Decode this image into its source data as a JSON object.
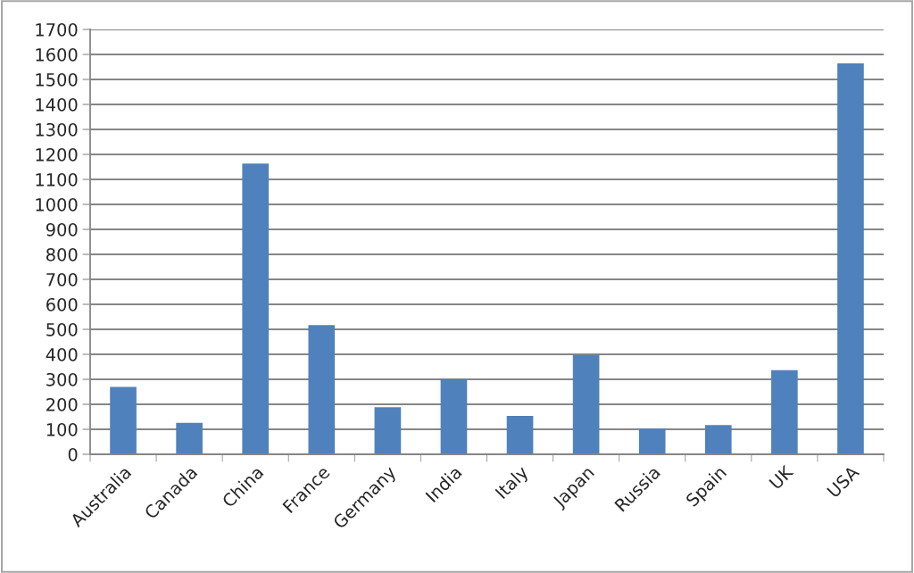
{
  "chart_data": {
    "type": "bar",
    "categories": [
      "Australia",
      "Canada",
      "China",
      "France",
      "Germany",
      "India",
      "Italy",
      "Japan",
      "Russia",
      "Spain",
      "UK",
      "USA"
    ],
    "values": [
      270,
      126,
      1163,
      517,
      188,
      301,
      154,
      397,
      103,
      117,
      337,
      1564
    ],
    "color": "#4f81bd",
    "ylim": [
      0,
      1700
    ],
    "yticks": [
      0,
      100,
      200,
      300,
      400,
      500,
      600,
      700,
      800,
      900,
      1000,
      1100,
      1200,
      1300,
      1400,
      1500,
      1600,
      1700
    ],
    "grid": "y"
  }
}
